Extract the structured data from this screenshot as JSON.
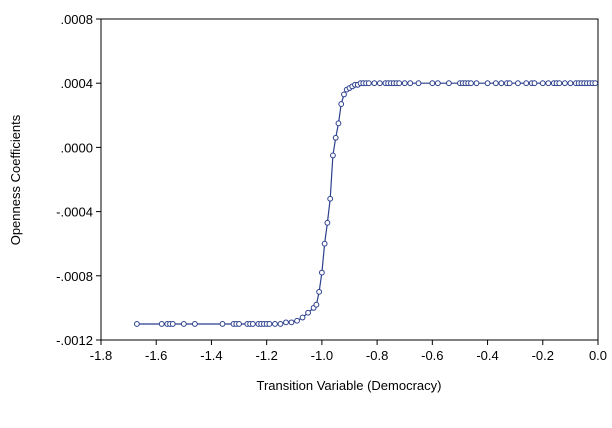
{
  "chart_data": {
    "type": "line",
    "title": "",
    "xlabel": "Transition Variable (Democracy)",
    "ylabel": "Openness Coefficients",
    "xlim": [
      -1.8,
      0.0
    ],
    "ylim": [
      -0.0012,
      0.0008
    ],
    "x_ticks": [
      -1.8,
      -1.6,
      -1.4,
      -1.2,
      -1.0,
      -0.8,
      -0.6,
      -0.4,
      -0.2,
      0.0
    ],
    "x_tick_labels": [
      "-1.8",
      "-1.6",
      "-1.4",
      "-1.2",
      "-1.0",
      "-0.8",
      "-0.6",
      "-0.4",
      "-0.2",
      "0.0"
    ],
    "y_ticks": [
      -0.0012,
      -0.0008,
      -0.0004,
      0.0,
      0.0004,
      0.0008
    ],
    "y_tick_labels": [
      "-.0012",
      "-.0008",
      "-.0004",
      ".0000",
      ".0004",
      ".0008"
    ],
    "grid": false,
    "color": "#2b3f8c",
    "series": [
      {
        "marker": "circle-open",
        "x": [
          -1.67,
          -1.58,
          -1.56,
          -1.55,
          -1.54,
          -1.5,
          -1.46,
          -1.36,
          -1.32,
          -1.31,
          -1.3,
          -1.27,
          -1.26,
          -1.25,
          -1.23,
          -1.22,
          -1.21,
          -1.2,
          -1.19,
          -1.17,
          -1.15,
          -1.13,
          -1.11,
          -1.09,
          -1.07,
          -1.05,
          -1.03,
          -1.02,
          -1.01,
          -1.0,
          -0.99,
          -0.98,
          -0.97,
          -0.96,
          -0.95,
          -0.94,
          -0.93,
          -0.92,
          -0.91,
          -0.9,
          -0.89,
          -0.88,
          -0.87,
          -0.86,
          -0.85,
          -0.84,
          -0.83,
          -0.81,
          -0.79,
          -0.77,
          -0.76,
          -0.75,
          -0.74,
          -0.73,
          -0.72,
          -0.7,
          -0.68,
          -0.65,
          -0.6,
          -0.58,
          -0.54,
          -0.5,
          -0.49,
          -0.48,
          -0.47,
          -0.46,
          -0.44,
          -0.4,
          -0.37,
          -0.35,
          -0.33,
          -0.32,
          -0.29,
          -0.26,
          -0.24,
          -0.23,
          -0.2,
          -0.18,
          -0.16,
          -0.15,
          -0.14,
          -0.12,
          -0.1,
          -0.08,
          -0.07,
          -0.06,
          -0.05,
          -0.04,
          -0.03,
          -0.02,
          -0.01
        ],
        "y": [
          -0.0011,
          -0.0011,
          -0.0011,
          -0.0011,
          -0.0011,
          -0.0011,
          -0.0011,
          -0.0011,
          -0.0011,
          -0.0011,
          -0.0011,
          -0.0011,
          -0.0011,
          -0.0011,
          -0.0011,
          -0.0011,
          -0.0011,
          -0.0011,
          -0.0011,
          -0.0011,
          -0.0011,
          -0.00109,
          -0.00109,
          -0.00108,
          -0.00106,
          -0.00103,
          -0.001,
          -0.00098,
          -0.0009,
          -0.00078,
          -0.0006,
          -0.00047,
          -0.00032,
          -5e-05,
          6e-05,
          0.00015,
          0.00027,
          0.00033,
          0.00036,
          0.00037,
          0.00038,
          0.00039,
          0.00039,
          0.0004,
          0.0004,
          0.0004,
          0.0004,
          0.0004,
          0.0004,
          0.0004,
          0.0004,
          0.0004,
          0.0004,
          0.0004,
          0.0004,
          0.0004,
          0.0004,
          0.0004,
          0.0004,
          0.0004,
          0.0004,
          0.0004,
          0.0004,
          0.0004,
          0.0004,
          0.0004,
          0.0004,
          0.0004,
          0.0004,
          0.0004,
          0.0004,
          0.0004,
          0.0004,
          0.0004,
          0.0004,
          0.0004,
          0.0004,
          0.0004,
          0.0004,
          0.0004,
          0.0004,
          0.0004,
          0.0004,
          0.0004,
          0.0004,
          0.0004,
          0.0004,
          0.0004,
          0.0004,
          0.0004,
          0.0004
        ]
      }
    ]
  }
}
